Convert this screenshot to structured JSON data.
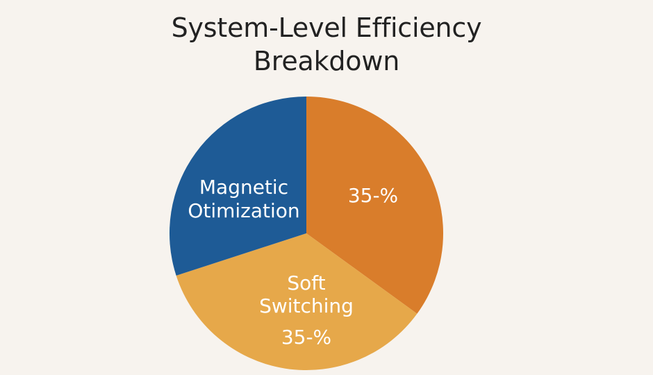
{
  "chart_data": {
    "type": "pie",
    "title_lines": [
      "System-Level Efficiency",
      "Breakdown"
    ],
    "colors": {
      "background": "#f7f3ee",
      "magnetic_optimization": "#1e5b96",
      "top_right_slice": "#d97d2b",
      "soft_switching": "#e6a84a"
    },
    "slices": [
      {
        "key": "magnetic_optimization",
        "value": 30,
        "label_lines": [
          "Magnetic",
          "Otimization"
        ]
      },
      {
        "key": "top_right_slice",
        "value": 35,
        "label_lines": [
          "35-%"
        ]
      },
      {
        "key": "soft_switching",
        "value": 35,
        "label_lines": [
          "Soft",
          "Switching",
          "35-%"
        ]
      }
    ]
  }
}
